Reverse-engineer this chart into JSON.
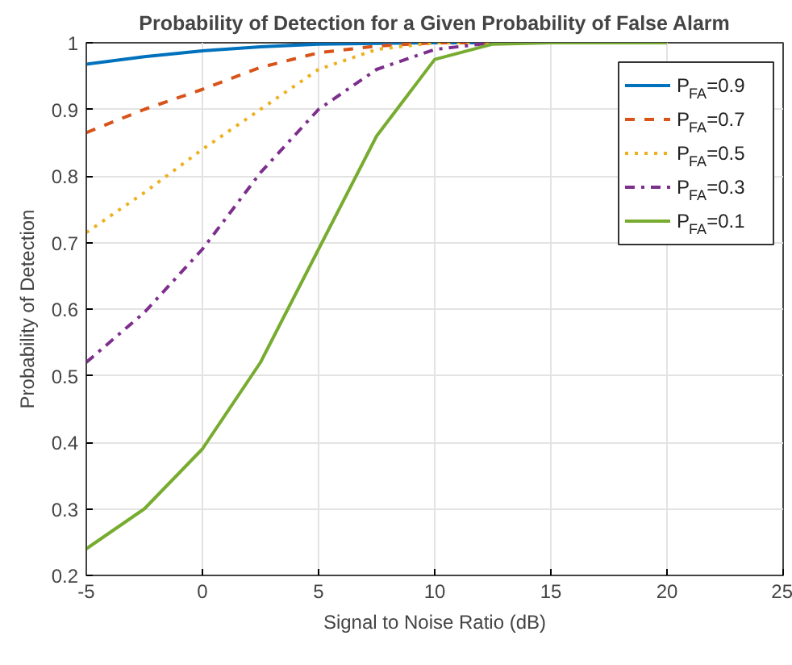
{
  "chart_data": {
    "type": "line",
    "title": "Probability of Detection for a Given Probability of False Alarm",
    "xlabel": "Signal to Noise Ratio (dB)",
    "ylabel": "Probability of Detection",
    "x": [
      -5,
      -2.5,
      0,
      2.5,
      5,
      7.5,
      10,
      12.5,
      15,
      17.5,
      20
    ],
    "xlim": [
      -5,
      25
    ],
    "xticks": [
      -5,
      0,
      5,
      10,
      15,
      20,
      25
    ],
    "ylim": [
      0.2,
      1
    ],
    "yticks": [
      0.2,
      0.3,
      0.4,
      0.5,
      0.6,
      0.7,
      0.8,
      0.9,
      1
    ],
    "grid": true,
    "legend": "top right",
    "series": [
      {
        "name": "P$_{FA}$=0.9",
        "color": "#0072bd",
        "line_style": "solid",
        "values": [
          0.968,
          0.979,
          0.988,
          0.994,
          0.998,
          0.999,
          1,
          1,
          1,
          null,
          null
        ]
      },
      {
        "name": "P$_{FA}$=0.7",
        "color": "#d95319",
        "line_style": "dashed",
        "values": [
          0.865,
          0.9,
          0.93,
          0.963,
          0.985,
          0.995,
          1,
          1,
          1,
          null,
          null
        ]
      },
      {
        "name": "P$_{FA}$=0.5",
        "color": "#edb120",
        "line_style": "dotted",
        "values": [
          0.715,
          0.775,
          0.84,
          0.9,
          0.96,
          0.99,
          1,
          1,
          1,
          null,
          null
        ]
      },
      {
        "name": "P$_{FA}$=0.3",
        "color": "#7e2f8e",
        "line_style": "dashdot",
        "values": [
          0.52,
          0.595,
          0.69,
          0.805,
          0.9,
          0.96,
          0.99,
          1,
          1,
          null,
          null
        ]
      },
      {
        "name": "P$_{FA}$=0.1",
        "color": "#77ac30",
        "line_style": "solid",
        "values": [
          0.24,
          0.3,
          0.39,
          0.52,
          0.69,
          0.86,
          0.975,
          0.998,
          1,
          1,
          1
        ]
      }
    ]
  }
}
